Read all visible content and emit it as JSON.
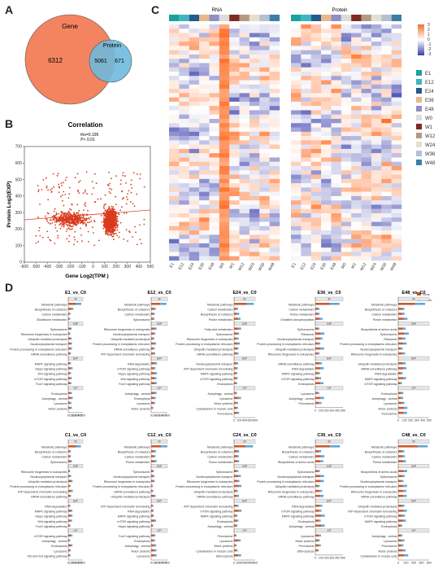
{
  "panels": {
    "a": "A",
    "b": "B",
    "c": "C",
    "d": "D"
  },
  "venn": {
    "gene_label": "Gene",
    "protein_label": "Protein",
    "gene_only": "6312",
    "overlap": "5061",
    "protein_only": "671",
    "gene_color": "#f3845f",
    "protein_color": "#6fb9dc"
  },
  "correlation": {
    "title": "Correlation",
    "stats1": "rho=0.195",
    "stats2": "P< 0.01",
    "xlabel": "Gene Log2(TPM )",
    "ylabel": "Protein Log2(EXP)",
    "xticks": [
      "-600",
      "-500",
      "-400",
      "-300",
      "-200",
      "-100",
      "0",
      "100",
      "200",
      "300",
      "400",
      "500"
    ],
    "yticks": [
      "0",
      "100",
      "200",
      "300",
      "400",
      "500",
      "600",
      "700"
    ]
  },
  "heatmap": {
    "rna_label": "RNA",
    "protein_label": "Protein",
    "samples": [
      "E1",
      "E12",
      "E24",
      "E36",
      "E48",
      "W0",
      "W1",
      "W12",
      "W24",
      "W36",
      "W48"
    ],
    "sample_colors": [
      "#19a39b",
      "#41b4c4",
      "#245a8c",
      "#e7b98a",
      "#8f8fc4",
      "#dcdcdc",
      "#7e2b23",
      "#b59a83",
      "#e3e0cf",
      "#b7bfd4",
      "#3e7ea6"
    ],
    "scale": [
      "3",
      "2",
      "1",
      "0",
      "-1",
      "-2",
      "-3"
    ]
  },
  "enrichment": {
    "legend": [
      "Gene",
      "Protein"
    ],
    "gene_color": "#c95a2e",
    "protein_color": "#5fa7d8",
    "x_ticks_a": [
      "0",
      "100",
      "200",
      "300",
      "400",
      "500"
    ],
    "x_ticks_b": [
      "0",
      "200",
      "400",
      "600",
      "800"
    ],
    "groups": [
      "M",
      "GIP",
      "EIP",
      "CP",
      "OS"
    ],
    "row1": [
      {
        "title": "E1_vs_C0",
        "labels": [
          "Metabolic pathways",
          "Biosynthesis of cofactors",
          "Carbon metabolism",
          "Glutathione metabolism",
          "Spliceosome",
          "Ribosome biogenesis in eukaryotes",
          "Ubiquitin mediated proteolysis",
          "Nucleocytoplasmic transport",
          "Protein processing in endoplasmic reticulum",
          "mRNA surveillance pathway",
          "MAPK signaling pathway",
          "Hippo signaling pathway",
          "Wnt signaling pathway",
          "mTOR signaling pathway",
          "FoxO signaling pathway",
          "Endocytosis",
          "Autophagy - animal",
          "Lysosome",
          "Motor proteins"
        ]
      },
      {
        "title": "E12_vs_C0",
        "labels": [
          "Metabolic pathways",
          "Biosynthesis of cofactors",
          "Carbon metabolism",
          "Spliceosome",
          "Ribosome biogenesis in eukaryotes",
          "Nucleocytoplasmic transport",
          "Ubiquitin mediated proteolysis",
          "Protein processing in endoplasmic reticulum",
          "mRNA surveillance pathway",
          "ATP-dependent chromatin remodeling",
          "RNA degradation",
          "mTOR signaling pathway",
          "Hippo signaling pathway",
          "Wnt signaling pathway",
          "FoxO signaling pathway",
          "Autophagy - animal",
          "Endocytosis",
          "Lysosome",
          "Motor proteins"
        ]
      },
      {
        "title": "E24_vs_C0",
        "labels": [
          "Metabolic pathways",
          "Carbon metabolism",
          "Biosynthesis of cofactors",
          "Purine metabolism",
          "Fatty acid metabolism",
          "Spliceosome",
          "Ribosome biogenesis in eukaryotes",
          "Protein processing in endoplasmic reticulum",
          "Ubiquitin mediated proteolysis",
          "mRNA surveillance pathway",
          "Nucleocytoplasmic transport",
          "ATP-dependent chromatin remodeling",
          "MAPK signaling pathway",
          "mTOR signaling pathway",
          "Endocytosis",
          "Autophagy - animal",
          "Lysosome",
          "Motor proteins",
          "Cytoskeleton in muscle cells",
          "Peroxisome"
        ]
      },
      {
        "title": "E36_vs_C0",
        "labels": [
          "Metabolic pathways",
          "Carbon metabolism",
          "Purine metabolism",
          "Oxidative phosphorylation",
          "Spliceosome",
          "Ribosome",
          "Nucleocytoplasmic transport",
          "Protein processing in endoplasmic reticulum",
          "Ubiquitin mediated proteolysis",
          "Ribosome biogenesis in eukaryotes",
          "mRNA surveillance pathway",
          "RNA degradation",
          "MAPK signaling pathway",
          "mTOR signaling pathway",
          "Endocytosis",
          "Lysosome",
          "Autophagy - animal",
          "Peroxisome"
        ]
      },
      {
        "title": "E48_vs_C0",
        "labels": [
          "Metabolic pathways",
          "Biosynthesis of cofactors",
          "Carbon metabolism",
          "Purine metabolism",
          "Biosynthesis of amino acids",
          "Spliceosome",
          "Ribosome",
          "Protein processing in endoplasmic reticulum",
          "Nucleocytoplasmic transport",
          "Ribosome biogenesis in eukaryotes",
          "Ubiquitin mediated proteolysis",
          "mRNA surveillance pathway",
          "RNA degradation",
          "MAPK signaling pathway",
          "mTOR signaling pathway",
          "Endocytosis",
          "Autophagy - animal",
          "Lysosome",
          "Motor proteins",
          "Peroxisome"
        ]
      }
    ],
    "row2": [
      {
        "title": "C1_vs_C0",
        "labels": [
          "Metabolic pathways",
          "Biosynthesis of cofactors",
          "Carbon metabolism",
          "Spliceosome",
          "Ribosome biogenesis in eukaryotes",
          "Nucleocytoplasmic transport",
          "Ubiquitin mediated proteolysis",
          "Protein processing in endoplasmic reticulum",
          "ATP-dependent chromatin remodeling",
          "mRNA surveillance pathway",
          "RNA degradation",
          "MAPK signaling pathway",
          "Hippo signaling pathway",
          "Wnt signaling pathway",
          "FoxO signaling pathway",
          "mTOR signaling pathway",
          "Autophagy - animal",
          "Endocytosis",
          "Lysosome",
          "Toll and Imd signaling pathway"
        ]
      },
      {
        "title": "C12_vs_C0",
        "labels": [
          "Metabolic pathways",
          "Biosynthesis of cofactors",
          "Carbon metabolism",
          "Purine metabolism",
          "Spliceosome",
          "Nucleocytoplasmic transport",
          "Ribosome biogenesis in eukaryotes",
          "Protein processing in endoplasmic reticulum",
          "mRNA surveillance pathway",
          "Ubiquitin mediated proteolysis",
          "ATP-dependent chromatin remodeling",
          "RNA degradation",
          "MAPK signaling pathway",
          "mTOR signaling pathway",
          "Hippo signaling pathway",
          "FoxO signaling pathway",
          "Endocytosis",
          "Autophagy - animal",
          "Motor proteins",
          "Lysosome"
        ]
      },
      {
        "title": "C24_vs_C0",
        "labels": [
          "Metabolic pathways",
          "Biosynthesis of cofactors",
          "Carbon metabolism",
          "Purine metabolism",
          "Spliceosome",
          "Nucleocytoplasmic transport",
          "Ribosome biogenesis in eukaryotes",
          "Protein processing in endoplasmic reticulum",
          "Ubiquitin mediated proteolysis",
          "mRNA surveillance pathway",
          "ATP-dependent chromatin remodeling",
          "mTOR signaling pathway",
          "MAPK signaling pathway",
          "Endocytosis",
          "Autophagy - animal",
          "Peroxisome",
          "Lysosome",
          "Motor proteins",
          "Cytoskeleton in muscle cells",
          "Efferocytosis"
        ]
      },
      {
        "title": "C36_vs_C0",
        "labels": [
          "Metabolic pathways",
          "Biosynthesis of cofactors",
          "Carbon metabolism",
          "Biosynthesis of amino acids",
          "Spliceosome",
          "Nucleocytoplasmic transport",
          "Protein processing in endoplasmic reticulum",
          "Ubiquitin mediated proteolysis",
          "Ribosome biogenesis in eukaryotes",
          "mRNA surveillance pathway",
          "RNA degradation",
          "mTOR signaling pathway",
          "MAPK signaling pathway",
          "Endocytosis",
          "Autophagy - animal",
          "Lysosome",
          "Motor proteins",
          "Peroxisome",
          "Efferocytosis"
        ]
      },
      {
        "title": "C48_vs_C0",
        "labels": [
          "Metabolic pathways",
          "Biosynthesis of cofactors",
          "Carbon metabolism",
          "Purine metabolism",
          "Biosynthesis of amino acids",
          "Spliceosome",
          "Nucleocytoplasmic transport",
          "Protein processing in endoplasmic reticulum",
          "Ribosome biogenesis in eukaryotes",
          "mRNA surveillance pathway",
          "Ubiquitin mediated proteolysis",
          "ATP-dependent chromatin remodeling",
          "mTOR signaling pathway",
          "MAPK signaling pathway",
          "Endocytosis",
          "Autophagy - animal",
          "Lysosome",
          "Peroxisome",
          "Motor proteins",
          "Cytoskeleton in muscle cells"
        ]
      }
    ]
  }
}
